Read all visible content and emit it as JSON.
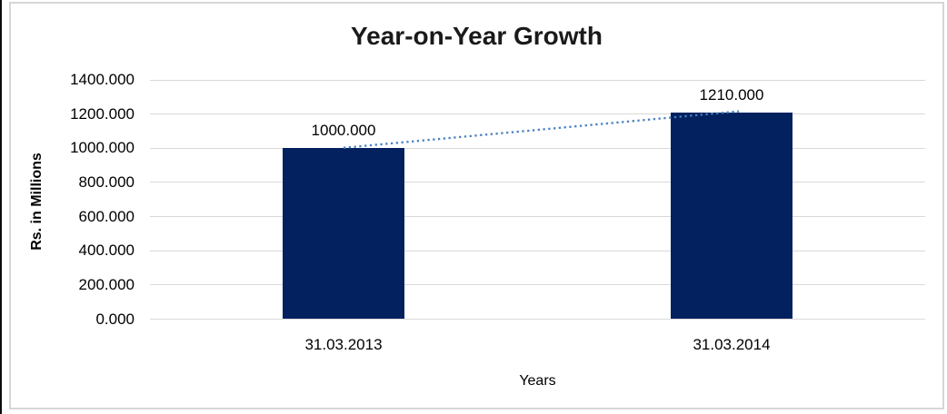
{
  "chart_data": {
    "type": "bar",
    "title": "Year-on-Year Growth",
    "xlabel": "Years",
    "ylabel": "Rs. in Millions",
    "categories": [
      "31.03.2013",
      "31.03.2014"
    ],
    "values": [
      1000,
      1210
    ],
    "value_labels": [
      "1000.000",
      "1210.000"
    ],
    "ylim": [
      0,
      1400
    ],
    "ytick_interval": 200,
    "ytick_labels": [
      "0.000",
      "200.000",
      "400.000",
      "600.000",
      "800.000",
      "1000.000",
      "1200.000",
      "1400.000"
    ],
    "grid": true,
    "legend": false,
    "trendline": {
      "type": "linear",
      "style": "dotted",
      "from_value": 1000,
      "to_value": 1210
    },
    "colors": {
      "bar": "#03215f",
      "gridline": "#d9d9d9",
      "trendline": "#4a80c2",
      "title_text": "#1a1a1a",
      "axis_text": "#000000",
      "frame_border": "#d6d6d6",
      "background": "#ffffff"
    }
  }
}
